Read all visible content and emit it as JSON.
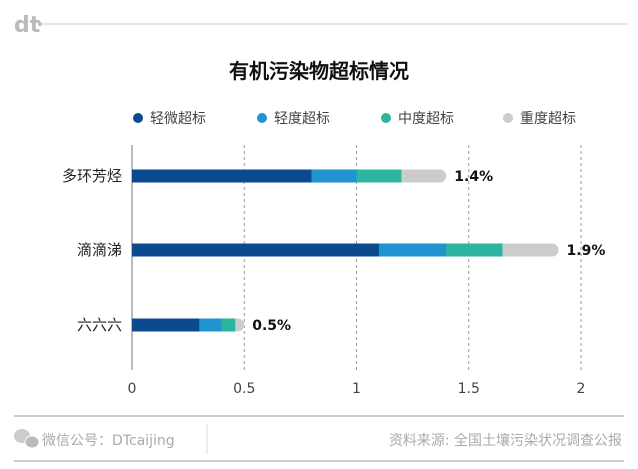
{
  "brand": {
    "logo_text": "dt"
  },
  "chart_data": {
    "type": "bar",
    "orientation": "horizontal",
    "stacked": true,
    "title": "有机污染物超标情况",
    "categories": [
      "多环芳烃",
      "滴滴涕",
      "六六六"
    ],
    "series": [
      {
        "name": "轻微超标",
        "color": "#0b4a8f",
        "values": [
          0.8,
          1.1,
          0.3
        ]
      },
      {
        "name": "轻度超标",
        "color": "#2193d1",
        "values": [
          0.2,
          0.3,
          0.1
        ]
      },
      {
        "name": "中度超标",
        "color": "#2bb5a0",
        "values": [
          0.2,
          0.25,
          0.06
        ]
      },
      {
        "name": "重度超标",
        "color": "#cccccc",
        "values": [
          0.2,
          0.25,
          0.04
        ]
      }
    ],
    "totals_labels": [
      "1.4%",
      "1.9%",
      "0.5%"
    ],
    "xlim": [
      0,
      2
    ],
    "xticks": [
      0,
      0.5,
      1,
      1.5,
      2
    ],
    "xtick_labels": [
      "0",
      "0.5",
      "1",
      "1.5",
      "2"
    ],
    "grid": "vertical dashed",
    "legend": "top"
  },
  "footer": {
    "wechat": "微信公号：DTcaijing",
    "source": "资料来源: 全国土壤污染状况调查公报"
  }
}
